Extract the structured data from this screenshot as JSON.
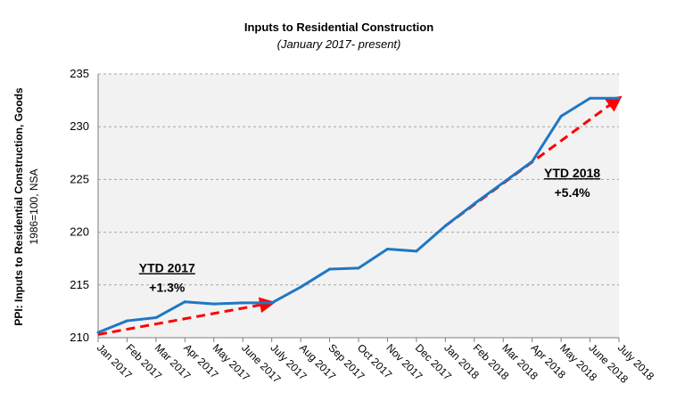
{
  "chart_data": {
    "type": "line",
    "title": "Inputs to Residential Construction",
    "subtitle": "(January 2017- present)",
    "ylabel": "PPI: Inputs to Residential Construction, Goods",
    "ylabel_sub": "1986=100, NSA",
    "xlabel": "",
    "ylim": [
      210,
      235
    ],
    "yticks": [
      210,
      215,
      220,
      225,
      230,
      235
    ],
    "grid": "horizontal-dashed",
    "background": "#f2f2f2",
    "categories": [
      "Jan 2017",
      "Feb 2017",
      "Mar 2017",
      "Apr 2017",
      "May 2017",
      "June 2017",
      "July 2017",
      "Aug 2017",
      "Sep 2017",
      "Oct 2017",
      "Nov 2017",
      "Dec 2017",
      "Jan 2018",
      "Feb 2018",
      "Mar 2018",
      "Apr 2018",
      "May 2018",
      "June 2018",
      "July 2018"
    ],
    "series": [
      {
        "color": "#1f77c4",
        "values": [
          210.5,
          211.6,
          211.9,
          213.4,
          213.2,
          213.3,
          213.3,
          214.8,
          216.5,
          216.6,
          218.4,
          218.2,
          220.6,
          222.7,
          224.7,
          226.7,
          231.0,
          232.7,
          232.7
        ]
      }
    ],
    "trend_arrows": [
      {
        "from": "Jan 2017",
        "to": "July 2017",
        "start": 210.3,
        "end": 213.3,
        "color": "#ff0000"
      },
      {
        "from": "Jan 2018",
        "to": "July 2018",
        "start": 220.6,
        "end": 232.7,
        "color": "#ff0000"
      }
    ],
    "annotations": [
      {
        "title": "YTD 2017",
        "value": "+1.3%",
        "x_category": "Apr 2017",
        "y": 216.2
      },
      {
        "title": "YTD 2018",
        "value": "+5.4%",
        "x_category": "June 2018",
        "y": 225.2
      }
    ]
  }
}
